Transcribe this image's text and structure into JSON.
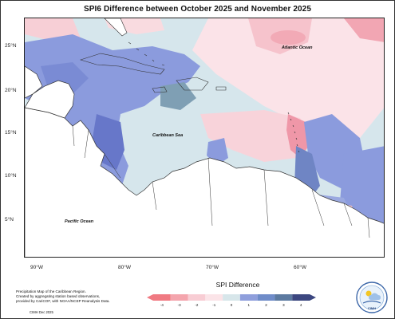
{
  "title": "SPI6 Difference between October 2025 and November 2025",
  "latitude_labels": [
    "25°N",
    "20°N",
    "15°N",
    "10°N",
    "5°N"
  ],
  "longitude_labels": [
    "90°W",
    "80°W",
    "70°W",
    "60°W"
  ],
  "ocean_labels": {
    "atlantic": "Atlantic Ocean",
    "caribbean": "Caribbean Sea",
    "pacific": "Pacific Ocean"
  },
  "credits": {
    "line1": "Precipitation Map of the Caribbean Region.",
    "line2": "Created by aggregating station based observations,",
    "line3": "provided by CariCOF, with NOAA/NCEP Reanalysis Data.",
    "date": "CIMH Dec 2025"
  },
  "legend": {
    "title": "SPI Difference",
    "ticks": [
      "-4",
      "-3",
      "-2",
      "-1",
      "0",
      "1",
      "2",
      "3",
      "4"
    ],
    "colors": [
      "#f07a82",
      "#f4a5ad",
      "#f8cdd4",
      "#fbe4e8",
      "#d7e6ea",
      "#8f9fdc",
      "#6f8cc9",
      "#5c7aa0",
      "#3c4780"
    ]
  },
  "logo": {
    "text": "CIMH"
  },
  "colors": {
    "pink_light": "#fbe3e8",
    "pink_mid": "#f5bfc9",
    "pink_strong": "#ee93a4",
    "blue_light": "#d2e3ea",
    "blue_mid": "#8b9bdd",
    "blue_deep": "#5a6bc8",
    "teal": "#7f9fb4",
    "land": "#ffffff"
  }
}
